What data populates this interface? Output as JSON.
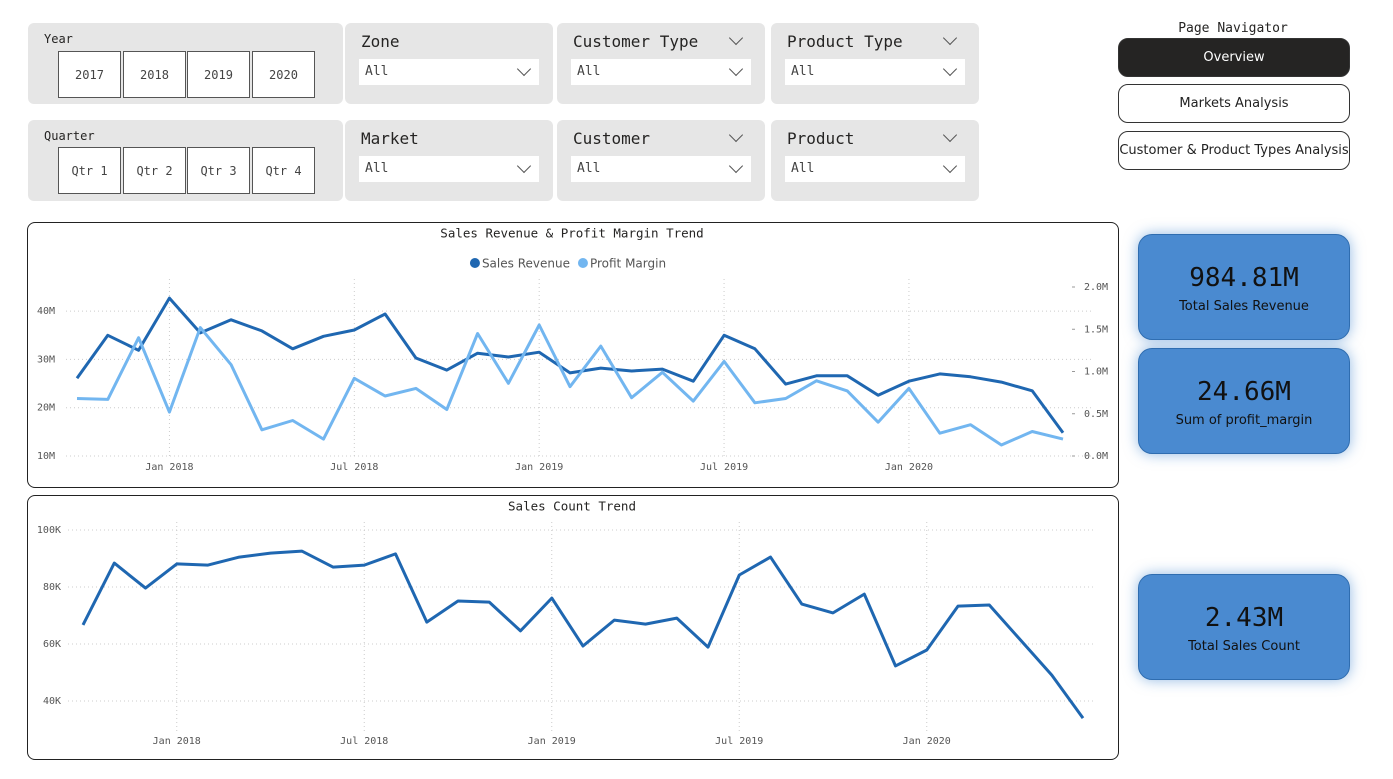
{
  "filters": {
    "year": {
      "label": "Year",
      "options": [
        "2017",
        "2018",
        "2019",
        "2020"
      ]
    },
    "quarter": {
      "label": "Quarter",
      "options": [
        "Qtr 1",
        "Qtr 2",
        "Qtr 3",
        "Qtr 4"
      ]
    },
    "dropdowns": [
      {
        "label": "Zone",
        "value": "All"
      },
      {
        "label": "Customer Type",
        "value": "All"
      },
      {
        "label": "Product Type",
        "value": "All"
      },
      {
        "label": "Market",
        "value": "All"
      },
      {
        "label": "Customer",
        "value": "All"
      },
      {
        "label": "Product",
        "value": "All"
      }
    ]
  },
  "navigator": {
    "title": "Page Navigator",
    "buttons": [
      "Overview",
      "Markets Analysis",
      "Customer & Product Types Analysis"
    ]
  },
  "kpis": [
    {
      "value": "984.81M",
      "label": "Total Sales Revenue"
    },
    {
      "value": "24.66M",
      "label": "Sum of profit_margin"
    },
    {
      "value": "2.43M",
      "label": "Total Sales Count"
    }
  ],
  "chart_data": [
    {
      "type": "line",
      "title": "Sales Revenue & Profit Margin Trend",
      "legend": "top",
      "grid": true,
      "categories": [
        null,
        null,
        null,
        "Jan 2018",
        null,
        null,
        null,
        null,
        null,
        "Jul 2018",
        null,
        null,
        null,
        null,
        null,
        "Jan 2019",
        null,
        null,
        null,
        null,
        null,
        "Jul 2019",
        null,
        null,
        null,
        null,
        null,
        "Jan 2020",
        null,
        null,
        null,
        null,
        null
      ],
      "series": [
        {
          "name": "Sales Revenue",
          "color": "#1f67b1",
          "values": [
            26100000,
            35000000,
            31900000,
            42700000,
            35500000,
            38200000,
            35900000,
            32200000,
            34800000,
            36100000,
            39400000,
            30300000,
            27800000,
            31300000,
            30500000,
            31500000,
            27200000,
            28200000,
            27600000,
            28000000,
            25500000,
            35000000,
            32200000,
            24900000,
            26600000,
            26600000,
            22600000,
            25500000,
            27000000,
            26400000,
            25300000,
            23500000,
            14800000
          ]
        },
        {
          "name": "Profit Margin",
          "color": "#72b6f0",
          "axis": "y2",
          "values": [
            680000,
            670000,
            1400000,
            520000,
            1520000,
            1080000,
            310000,
            420000,
            200000,
            920000,
            710000,
            800000,
            550000,
            1450000,
            860000,
            1550000,
            820000,
            1300000,
            690000,
            990000,
            650000,
            1120000,
            630000,
            680000,
            890000,
            770000,
            400000,
            800000,
            270000,
            370000,
            130000,
            290000,
            200000
          ]
        }
      ],
      "ylim": [
        10000000,
        45000000
      ],
      "yticks": [
        {
          "value": 10000000,
          "label": "10M"
        },
        {
          "value": 20000000,
          "label": "20M"
        },
        {
          "value": 30000000,
          "label": "30M"
        },
        {
          "value": 40000000,
          "label": "40M"
        }
      ],
      "y2lim": [
        0,
        2000000
      ],
      "y2ticks": [
        {
          "value": 0,
          "label": "0.0M"
        },
        {
          "value": 500000,
          "label": "0.5M"
        },
        {
          "value": 1000000,
          "label": "1.0M"
        },
        {
          "value": 1500000,
          "label": "1.5M"
        },
        {
          "value": 2000000,
          "label": "2.0M"
        }
      ]
    },
    {
      "type": "line",
      "title": "Sales Count Trend",
      "grid": true,
      "categories": [
        null,
        null,
        null,
        "Jan 2018",
        null,
        null,
        null,
        null,
        null,
        "Jul 2018",
        null,
        null,
        null,
        null,
        null,
        "Jan 2019",
        null,
        null,
        null,
        null,
        null,
        "Jul 2019",
        null,
        null,
        null,
        null,
        null,
        "Jan 2020",
        null,
        null,
        null,
        null,
        null
      ],
      "series": [
        {
          "color": "#1f67b1",
          "values": [
            66700,
            88400,
            79600,
            88100,
            87700,
            90500,
            91900,
            92600,
            87000,
            87700,
            91600,
            67700,
            75100,
            74700,
            64600,
            76100,
            59300,
            68400,
            67000,
            69100,
            58900,
            84200,
            90500,
            74000,
            70900,
            77500,
            52300,
            57900,
            73300,
            73700,
            61400,
            49100,
            34000
          ]
        }
      ],
      "ylim": [
        30000,
        100000
      ],
      "yticks": [
        {
          "value": 40000,
          "label": "40K"
        },
        {
          "value": 60000,
          "label": "60K"
        },
        {
          "value": 80000,
          "label": "80K"
        },
        {
          "value": 100000,
          "label": "100K"
        }
      ]
    }
  ]
}
